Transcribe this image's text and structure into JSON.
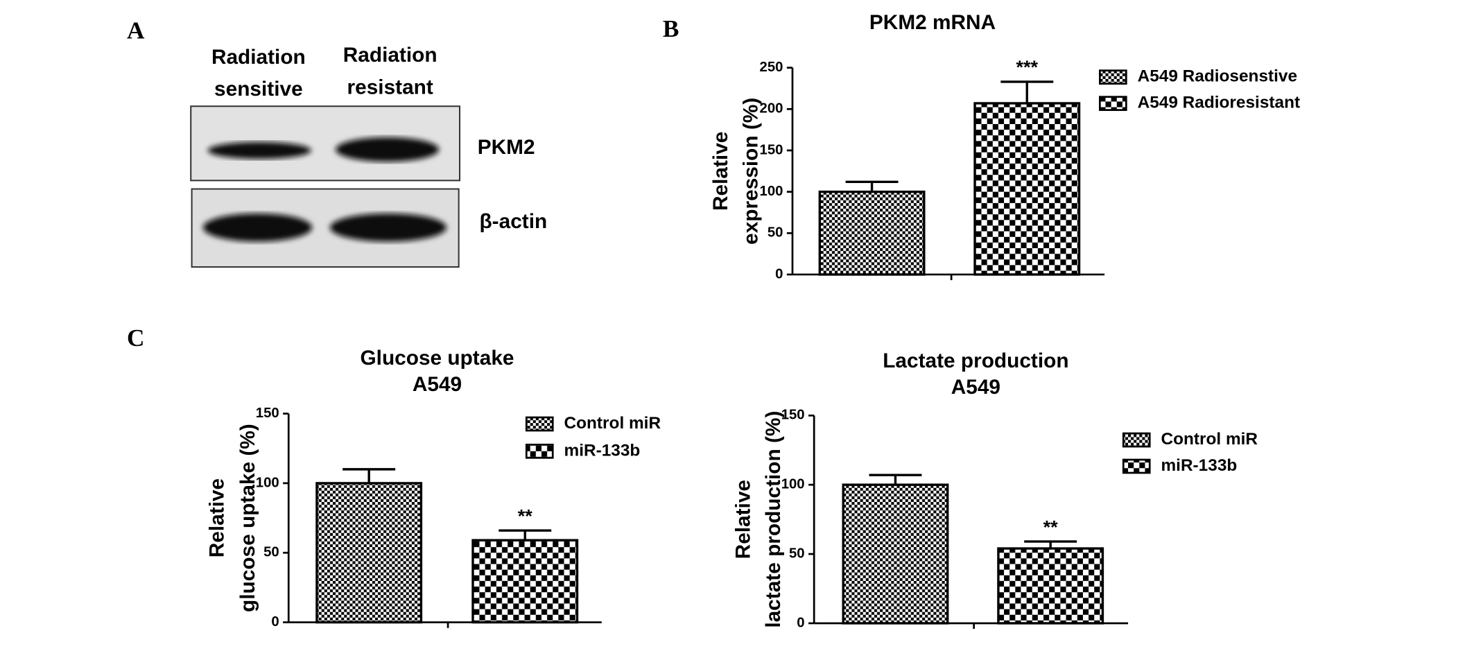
{
  "panels": [
    "A",
    "B",
    "C"
  ],
  "blot": {
    "columns": [
      [
        "Radiation",
        "sensitive"
      ],
      [
        "Radiation",
        "resistant"
      ]
    ],
    "rows": [
      "PKM2",
      "β-actin"
    ]
  },
  "chart_data": [
    {
      "type": "bar",
      "title": [
        "PKM2 mRNA"
      ],
      "ylabel": [
        "Relative",
        "expression (%)"
      ],
      "ylim": [
        0,
        250
      ],
      "yticks": [
        0,
        50,
        100,
        150,
        200,
        250
      ],
      "series": [
        {
          "name": "A549 Radiosenstive",
          "pattern": "fine",
          "color": "#000000",
          "values": [
            100
          ],
          "errors": [
            12
          ]
        },
        {
          "name": "A549 Radioresistant",
          "pattern": "coarse",
          "color": "#000000",
          "values": [
            207
          ],
          "errors": [
            26
          ],
          "label": "***"
        }
      ]
    },
    {
      "type": "bar",
      "title": [
        "Glucose uptake",
        "A549"
      ],
      "ylabel": [
        "Relative",
        "glucose uptake (%)"
      ],
      "ylim": [
        0,
        150
      ],
      "yticks": [
        0,
        50,
        100,
        150
      ],
      "series": [
        {
          "name": "Control miR",
          "pattern": "fine",
          "color": "#000000",
          "values": [
            100
          ],
          "errors": [
            10
          ]
        },
        {
          "name": "miR-133b",
          "pattern": "coarse",
          "color": "#000000",
          "values": [
            59
          ],
          "errors": [
            7
          ],
          "label": "**"
        }
      ]
    },
    {
      "type": "bar",
      "title": [
        "Lactate production",
        "A549"
      ],
      "ylabel": [
        "Relative",
        "lactate production (%)"
      ],
      "ylim": [
        0,
        150
      ],
      "yticks": [
        0,
        50,
        100,
        150
      ],
      "series": [
        {
          "name": "Control miR",
          "pattern": "fine",
          "color": "#000000",
          "values": [
            100
          ],
          "errors": [
            7
          ]
        },
        {
          "name": "miR-133b",
          "pattern": "coarse",
          "color": "#000000",
          "values": [
            54
          ],
          "errors": [
            5
          ],
          "label": "**"
        }
      ]
    }
  ]
}
